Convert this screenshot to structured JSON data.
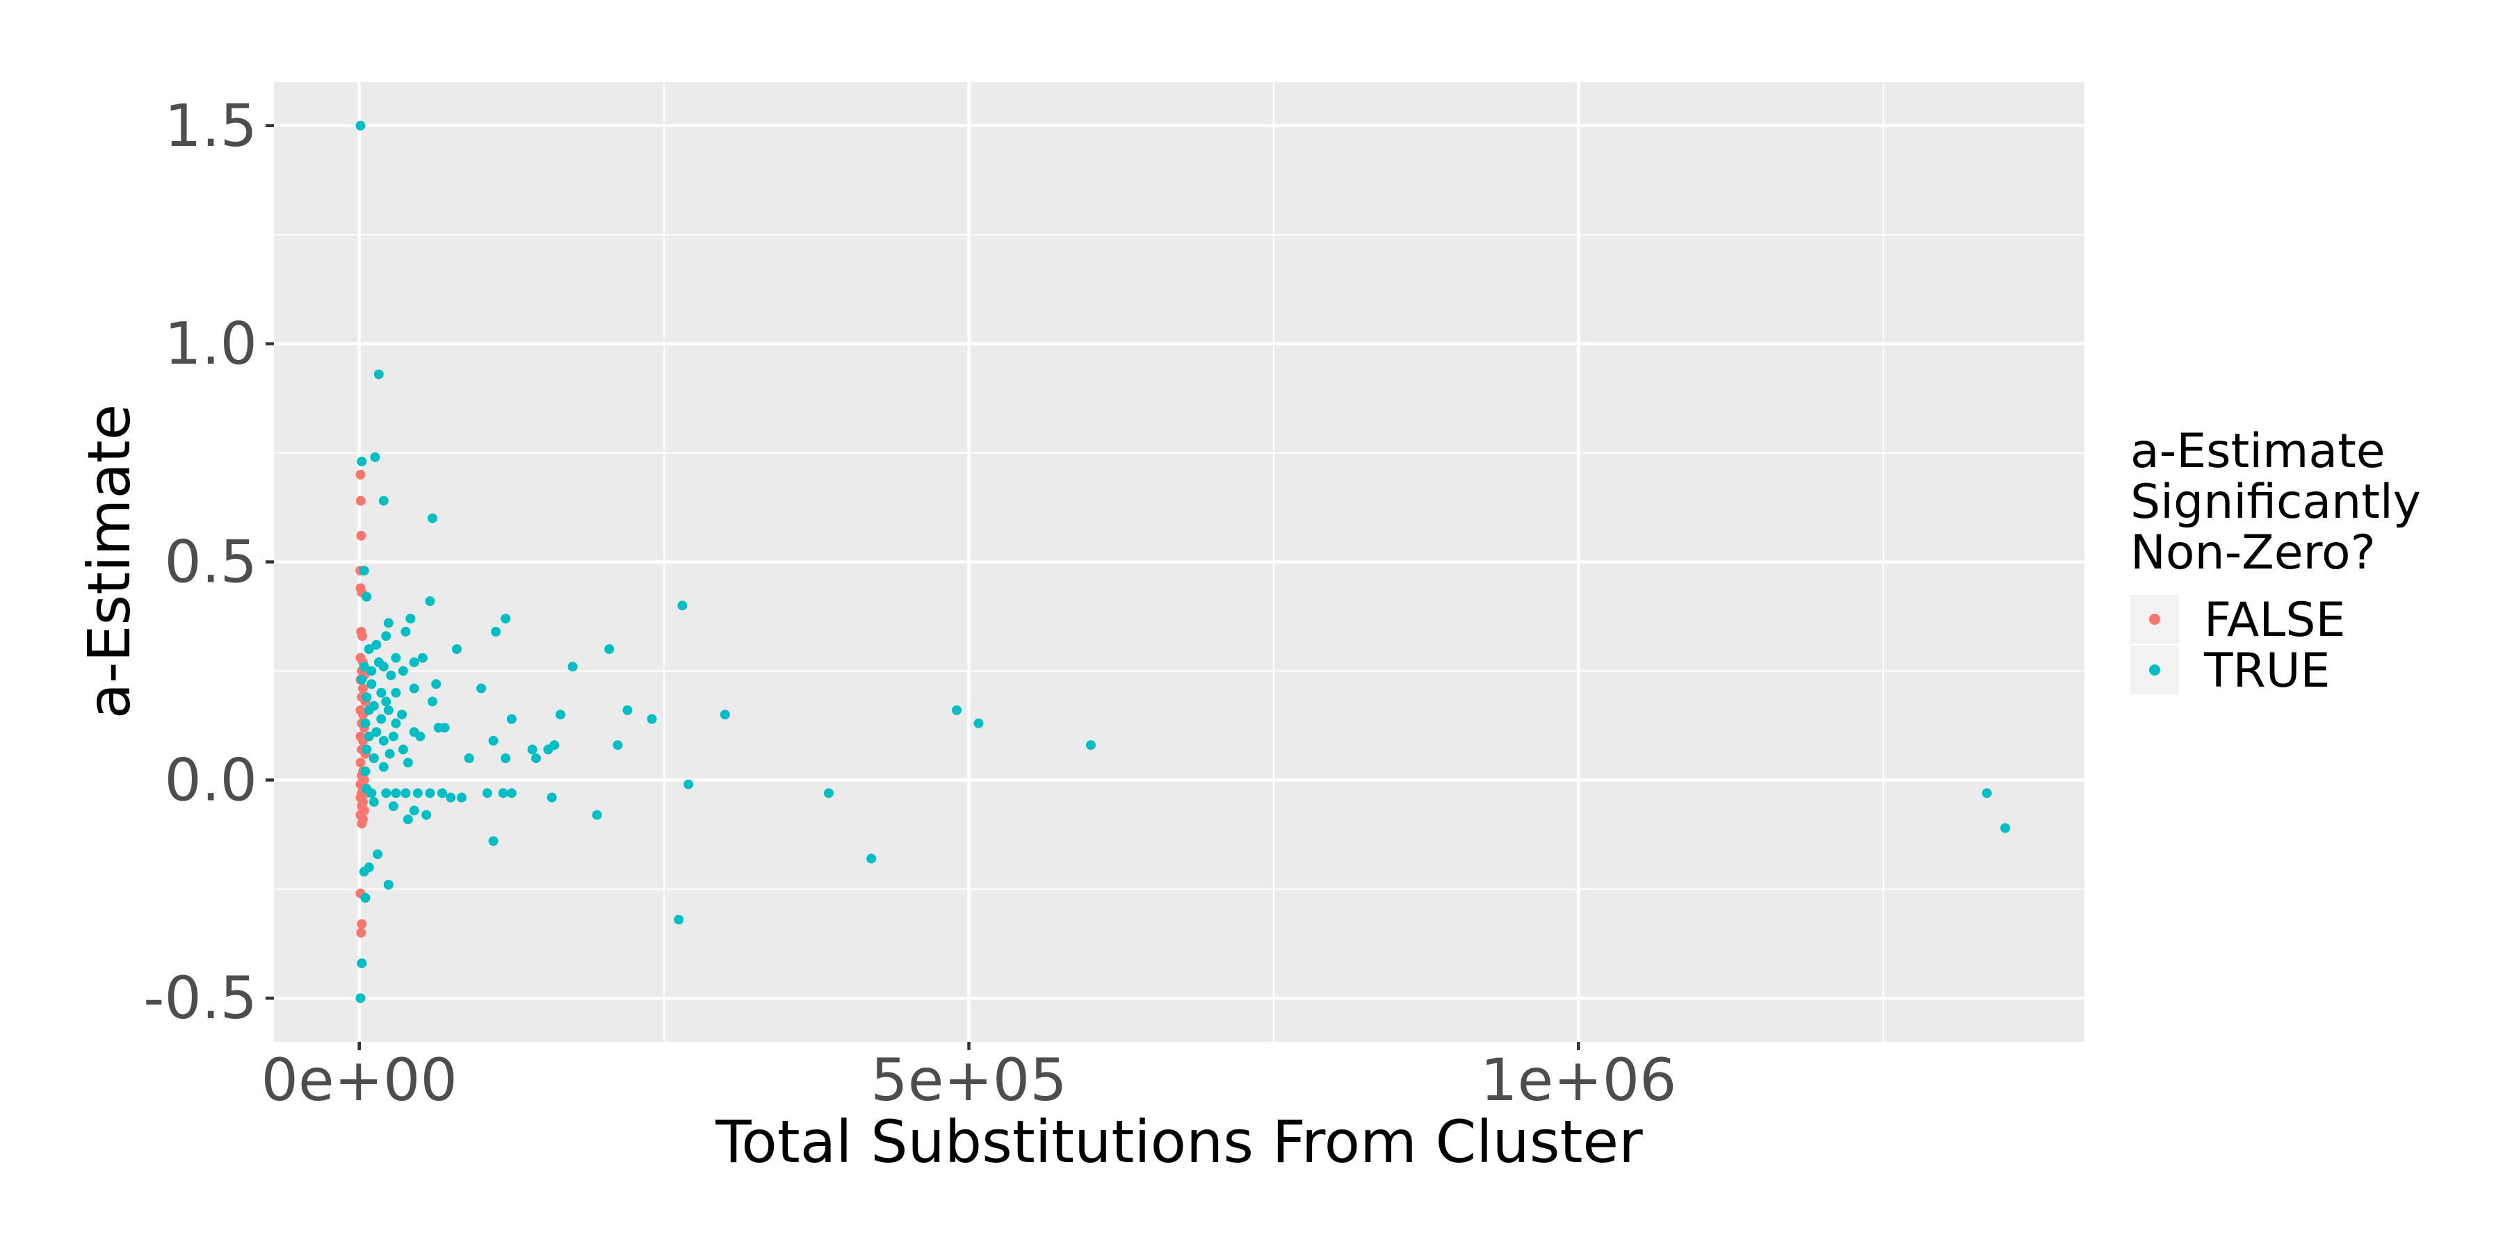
{
  "chart_data": {
    "type": "scatter",
    "title": "",
    "xlabel": "Total Substitutions From Cluster",
    "ylabel": "a-Estimate",
    "xlim": [
      -70000,
      1415000
    ],
    "ylim": [
      -0.6,
      1.6
    ],
    "x_ticks": [
      {
        "value": 0,
        "label": "0e+00"
      },
      {
        "value": 500000,
        "label": "5e+05"
      },
      {
        "value": 1000000,
        "label": "1e+06"
      }
    ],
    "y_ticks": [
      {
        "value": -0.5,
        "label": "-0.5"
      },
      {
        "value": 0.0,
        "label": "0.0"
      },
      {
        "value": 0.5,
        "label": "0.5"
      },
      {
        "value": 1.0,
        "label": "1.0"
      },
      {
        "value": 1.5,
        "label": "1.5"
      }
    ],
    "grid": true,
    "legend": {
      "title": [
        "a-Estimate",
        "Significantly",
        "Non-Zero?"
      ],
      "placement": "right"
    },
    "series": [
      {
        "name": "FALSE",
        "color": "#F8766D",
        "points": [
          [
            1000,
            0.7
          ],
          [
            1200,
            0.64
          ],
          [
            1500,
            0.56
          ],
          [
            800,
            0.48
          ],
          [
            1000,
            0.44
          ],
          [
            2000,
            0.43
          ],
          [
            1500,
            0.34
          ],
          [
            2500,
            0.33
          ],
          [
            1000,
            0.28
          ],
          [
            3000,
            0.27
          ],
          [
            2000,
            0.25
          ],
          [
            4000,
            0.24
          ],
          [
            1000,
            0.23
          ],
          [
            3000,
            0.21
          ],
          [
            2000,
            0.19
          ],
          [
            5000,
            0.18
          ],
          [
            1000,
            0.16
          ],
          [
            3000,
            0.15
          ],
          [
            2000,
            0.13
          ],
          [
            4000,
            0.12
          ],
          [
            1000,
            0.1
          ],
          [
            3000,
            0.09
          ],
          [
            2000,
            0.07
          ],
          [
            5000,
            0.06
          ],
          [
            1000,
            0.04
          ],
          [
            3000,
            0.02
          ],
          [
            2000,
            0.01
          ],
          [
            4000,
            0.0
          ],
          [
            1000,
            -0.01
          ],
          [
            3000,
            -0.02
          ],
          [
            2000,
            -0.03
          ],
          [
            6000,
            -0.03
          ],
          [
            1000,
            -0.04
          ],
          [
            3000,
            -0.05
          ],
          [
            2000,
            -0.06
          ],
          [
            4000,
            -0.07
          ],
          [
            1000,
            -0.08
          ],
          [
            3000,
            -0.09
          ],
          [
            2000,
            -0.1
          ],
          [
            1000,
            -0.26
          ],
          [
            2000,
            -0.33
          ],
          [
            1500,
            -0.35
          ]
        ]
      },
      {
        "name": "TRUE",
        "color": "#00BFC4",
        "points": [
          [
            1000,
            1.5
          ],
          [
            16000,
            0.93
          ],
          [
            13000,
            0.74
          ],
          [
            2000,
            0.73
          ],
          [
            20000,
            0.64
          ],
          [
            60000,
            0.6
          ],
          [
            4000,
            0.48
          ],
          [
            6000,
            0.42
          ],
          [
            265000,
            0.4
          ],
          [
            58000,
            0.41
          ],
          [
            42000,
            0.37
          ],
          [
            120000,
            0.37
          ],
          [
            24000,
            0.36
          ],
          [
            112000,
            0.34
          ],
          [
            38000,
            0.34
          ],
          [
            22000,
            0.33
          ],
          [
            14000,
            0.31
          ],
          [
            8000,
            0.3
          ],
          [
            205000,
            0.3
          ],
          [
            80000,
            0.3
          ],
          [
            52000,
            0.28
          ],
          [
            30000,
            0.28
          ],
          [
            16000,
            0.27
          ],
          [
            4000,
            0.26
          ],
          [
            45000,
            0.27
          ],
          [
            20000,
            0.26
          ],
          [
            175000,
            0.26
          ],
          [
            10000,
            0.25
          ],
          [
            36000,
            0.25
          ],
          [
            26000,
            0.24
          ],
          [
            2000,
            0.23
          ],
          [
            63000,
            0.22
          ],
          [
            10000,
            0.22
          ],
          [
            45000,
            0.21
          ],
          [
            100000,
            0.21
          ],
          [
            18000,
            0.2
          ],
          [
            30000,
            0.2
          ],
          [
            6000,
            0.19
          ],
          [
            22000,
            0.18
          ],
          [
            60000,
            0.18
          ],
          [
            12000,
            0.17
          ],
          [
            8000,
            0.16
          ],
          [
            24000,
            0.16
          ],
          [
            220000,
            0.16
          ],
          [
            490000,
            0.16
          ],
          [
            35000,
            0.15
          ],
          [
            165000,
            0.15
          ],
          [
            300000,
            0.15
          ],
          [
            125000,
            0.14
          ],
          [
            240000,
            0.14
          ],
          [
            18000,
            0.14
          ],
          [
            508000,
            0.13
          ],
          [
            5000,
            0.13
          ],
          [
            30000,
            0.13
          ],
          [
            65000,
            0.12
          ],
          [
            70000,
            0.12
          ],
          [
            45000,
            0.11
          ],
          [
            14000,
            0.11
          ],
          [
            8000,
            0.1
          ],
          [
            28000,
            0.1
          ],
          [
            50000,
            0.1
          ],
          [
            110000,
            0.09
          ],
          [
            20000,
            0.09
          ],
          [
            160000,
            0.08
          ],
          [
            212000,
            0.08
          ],
          [
            600000,
            0.08
          ],
          [
            6000,
            0.07
          ],
          [
            36000,
            0.07
          ],
          [
            142000,
            0.07
          ],
          [
            155000,
            0.07
          ],
          [
            25000,
            0.06
          ],
          [
            12000,
            0.05
          ],
          [
            90000,
            0.05
          ],
          [
            120000,
            0.05
          ],
          [
            145000,
            0.05
          ],
          [
            40000,
            0.04
          ],
          [
            20000,
            0.03
          ],
          [
            5000,
            0.02
          ],
          [
            270000,
            -0.01
          ],
          [
            6000,
            -0.02
          ],
          [
            10000,
            -0.03
          ],
          [
            22000,
            -0.03
          ],
          [
            30000,
            -0.03
          ],
          [
            38000,
            -0.03
          ],
          [
            48000,
            -0.03
          ],
          [
            58000,
            -0.03
          ],
          [
            68000,
            -0.03
          ],
          [
            75000,
            -0.04
          ],
          [
            105000,
            -0.03
          ],
          [
            118000,
            -0.03
          ],
          [
            125000,
            -0.03
          ],
          [
            158000,
            -0.04
          ],
          [
            385000,
            -0.03
          ],
          [
            1335000,
            -0.03
          ],
          [
            84000,
            -0.04
          ],
          [
            12000,
            -0.05
          ],
          [
            28000,
            -0.06
          ],
          [
            45000,
            -0.07
          ],
          [
            55000,
            -0.08
          ],
          [
            40000,
            -0.09
          ],
          [
            195000,
            -0.08
          ],
          [
            1350000,
            -0.11
          ],
          [
            110000,
            -0.14
          ],
          [
            15000,
            -0.17
          ],
          [
            8000,
            -0.2
          ],
          [
            4000,
            -0.21
          ],
          [
            24000,
            -0.24
          ],
          [
            5000,
            -0.27
          ],
          [
            420000,
            -0.18
          ],
          [
            262000,
            -0.32
          ],
          [
            2000,
            -0.42
          ],
          [
            1000,
            -0.5
          ]
        ]
      }
    ]
  }
}
